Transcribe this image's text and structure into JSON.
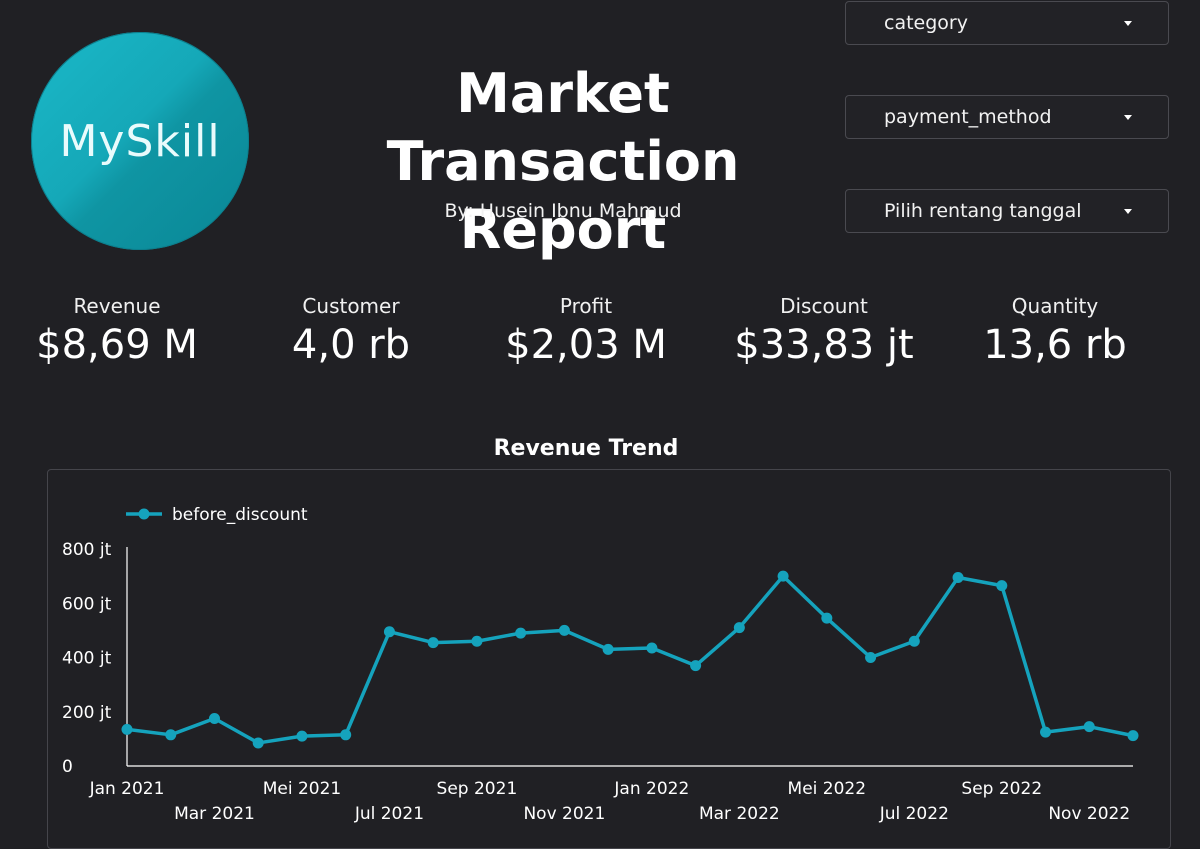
{
  "logo": {
    "text": "MySkill"
  },
  "header": {
    "title_line1": "Market Transaction",
    "title_line2": "Report",
    "byline": "By: Husein Ibnu Mahmud"
  },
  "filters": [
    {
      "label": "category"
    },
    {
      "label": "payment_method"
    },
    {
      "label": "Pilih rentang tanggal"
    }
  ],
  "kpis": [
    {
      "label": "Revenue",
      "value": "$8,69 M"
    },
    {
      "label": "Customer",
      "value": "4,0 rb"
    },
    {
      "label": "Profit",
      "value": "$2,03 M"
    },
    {
      "label": "Discount",
      "value": "$33,83 jt"
    },
    {
      "label": "Quantity",
      "value": "13,6 rb"
    }
  ],
  "colors": {
    "background": "#202024",
    "series": "#15a3bd",
    "axis": "#ffffff"
  },
  "chart_data": {
    "type": "line",
    "title": "Revenue Trend",
    "legend": "top-left",
    "grid": false,
    "x": [
      "Jan 2021",
      "Feb 2021",
      "Mar 2021",
      "Apr 2021",
      "Mei 2021",
      "Jun 2021",
      "Jul 2021",
      "Aug 2021",
      "Sep 2021",
      "Oct 2021",
      "Nov 2021",
      "Dec 2021",
      "Jan 2022",
      "Feb 2022",
      "Mar 2022",
      "Apr 2022",
      "Mei 2022",
      "Jun 2022",
      "Jul 2022",
      "Aug 2022",
      "Sep 2022",
      "Oct 2022",
      "Nov 2022",
      "Dec 2022"
    ],
    "xtick_labels": [
      "Jan 2021",
      "Mar 2021",
      "Mei 2021",
      "Jul 2021",
      "Sep 2021",
      "Nov 2021",
      "Jan 2022",
      "Mar 2022",
      "Mei 2022",
      "Jul 2022",
      "Sep 2022",
      "Nov 2022"
    ],
    "series": [
      {
        "name": "before_discount",
        "values": [
          135,
          115,
          175,
          85,
          110,
          115,
          495,
          455,
          460,
          490,
          500,
          430,
          435,
          370,
          510,
          700,
          545,
          400,
          460,
          695,
          665,
          125,
          145,
          112
        ]
      }
    ],
    "ylim": [
      0,
      800
    ],
    "yticks": [
      0,
      200,
      400,
      600,
      800
    ],
    "ytick_labels": [
      "0",
      "200 jt",
      "400 jt",
      "600 jt",
      "800 jt"
    ],
    "yunit": "jt"
  }
}
